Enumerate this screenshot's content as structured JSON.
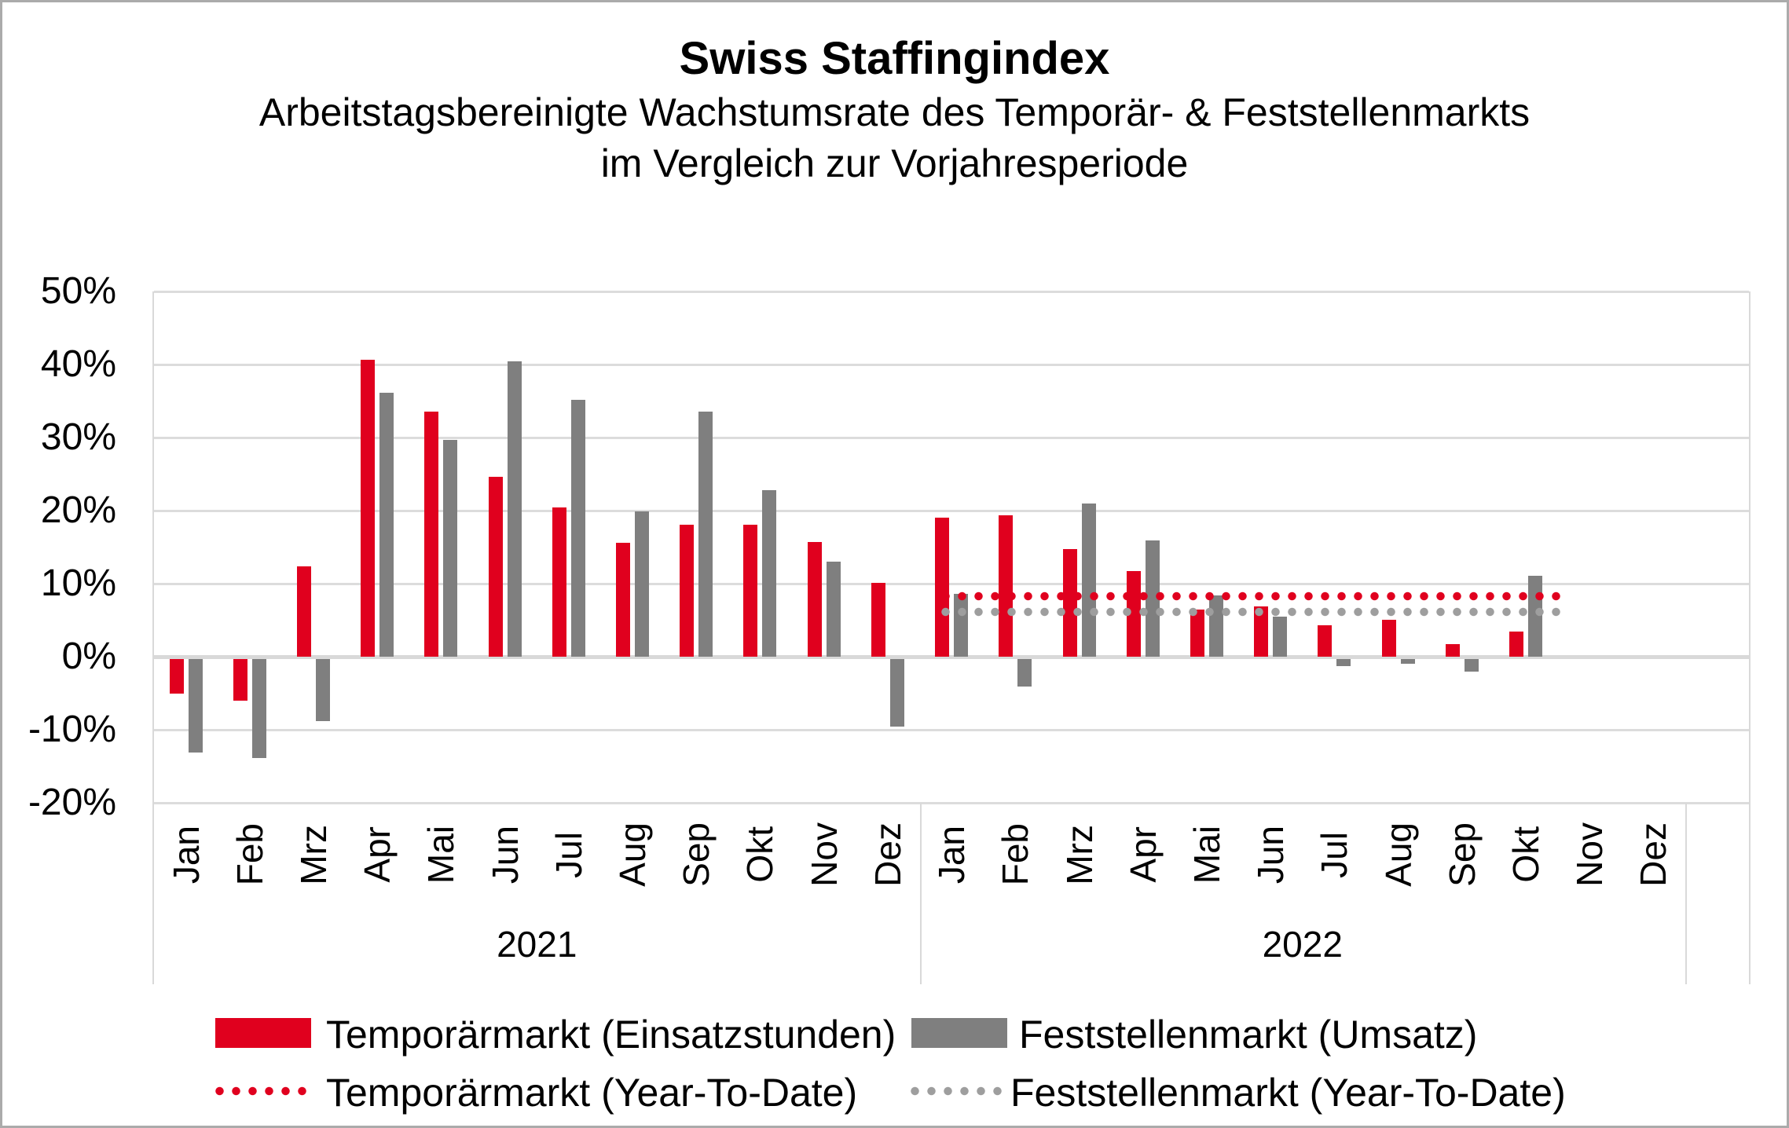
{
  "title": "Swiss Staffingindex",
  "subtitle_line1": "Arbeitstagsbereinigte Wachstumsrate des Temporär- & Feststellenmarkts",
  "subtitle_line2": "im Vergleich zur Vorjahresperiode",
  "colors": {
    "temp_red": "#E0001E",
    "fest_gray": "#7F7F7F",
    "ytd_red": "#E0001E",
    "ytd_gray": "#9E9E9E",
    "gridline": "#DCDCDC",
    "axis_line": "#D9D9D9"
  },
  "y_axis": {
    "tick_labels": [
      "50%",
      "40%",
      "30%",
      "20%",
      "10%",
      "0%",
      "-10%",
      "-20%"
    ],
    "tick_values": [
      50,
      40,
      30,
      20,
      10,
      0,
      -10,
      -20
    ],
    "max": 50,
    "min": -20,
    "step": 10
  },
  "chart_data": {
    "type": "bar",
    "title": "Swiss Staffingindex",
    "subtitle": "Arbeitstagsbereinigte Wachstumsrate des Temporär- & Feststellenmarkts im Vergleich zur Vorjahresperiode",
    "ylim": [
      -20,
      50
    ],
    "grid": true,
    "legend_position": "bottom",
    "groups": [
      {
        "year": "2021",
        "months": [
          "Jan",
          "Feb",
          "Mrz",
          "Apr",
          "Mai",
          "Jun",
          "Jul",
          "Aug",
          "Sep",
          "Okt",
          "Nov",
          "Dez"
        ]
      },
      {
        "year": "2022",
        "months": [
          "Jan",
          "Feb",
          "Mrz",
          "Apr",
          "Mai",
          "Jun",
          "Jul",
          "Aug",
          "Sep",
          "Okt",
          "Nov",
          "Dez"
        ]
      }
    ],
    "series": [
      {
        "name": "Temporärmarkt (Einsatzstunden)",
        "kind": "bar",
        "color": "#E0001E",
        "values_2021": [
          -4.7,
          -5.7,
          12.4,
          40.6,
          33.6,
          24.6,
          20.4,
          15.6,
          18.1,
          18.1,
          15.7,
          10.1
        ],
        "values_2022": [
          19.0,
          19.4,
          14.7,
          11.7,
          6.4,
          6.9,
          4.3,
          5.1,
          1.7,
          3.4,
          null,
          null
        ]
      },
      {
        "name": "Feststellenmarkt (Umsatz)",
        "kind": "bar",
        "color": "#7F7F7F",
        "values_2021": [
          -12.8,
          -13.6,
          -8.5,
          36.1,
          29.7,
          40.4,
          35.2,
          19.9,
          33.6,
          22.8,
          13.0,
          -9.3
        ],
        "values_2022": [
          8.6,
          -3.8,
          21.0,
          15.9,
          8.4,
          5.5,
          -1.0,
          -0.6,
          -1.7,
          11.1,
          null,
          null
        ]
      },
      {
        "name": "Temporärmarkt (Year-To-Date)",
        "kind": "dotted-line",
        "color": "#E0001E",
        "value": 8.3,
        "span": [
          "2022-Jan",
          "2022-Okt"
        ]
      },
      {
        "name": "Feststellenmarkt (Year-To-Date)",
        "kind": "dotted-line",
        "color": "#9E9E9E",
        "value": 6.1,
        "span": [
          "2022-Jan",
          "2022-Okt"
        ]
      }
    ]
  },
  "legend": {
    "temp_bars": "Temporärmarkt (Einsatzstunden)",
    "fest_bars": "Feststellenmarkt (Umsatz)",
    "temp_ytd": "Temporärmarkt (Year-To-Date)",
    "fest_ytd": "Feststellenmarkt (Year-To-Date)"
  }
}
